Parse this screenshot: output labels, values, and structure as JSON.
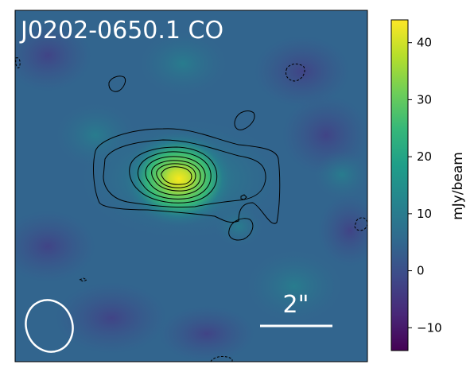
{
  "figure": {
    "title": "J0202-0650.1 CO",
    "scale_bar_label": "2\"",
    "colorbar": {
      "label": "mJy/beam",
      "colormap": "viridis",
      "range": [
        -14,
        44
      ],
      "ticks": [
        "−10",
        "0",
        "10",
        "20",
        "30",
        "40"
      ],
      "tick_values": [
        -10,
        0,
        10,
        20,
        30,
        40
      ]
    },
    "colors": {
      "background": "#2f6e8e",
      "source_peak": "#f0e51c",
      "contour": "#000000",
      "beam": "#ffffff"
    }
  }
}
